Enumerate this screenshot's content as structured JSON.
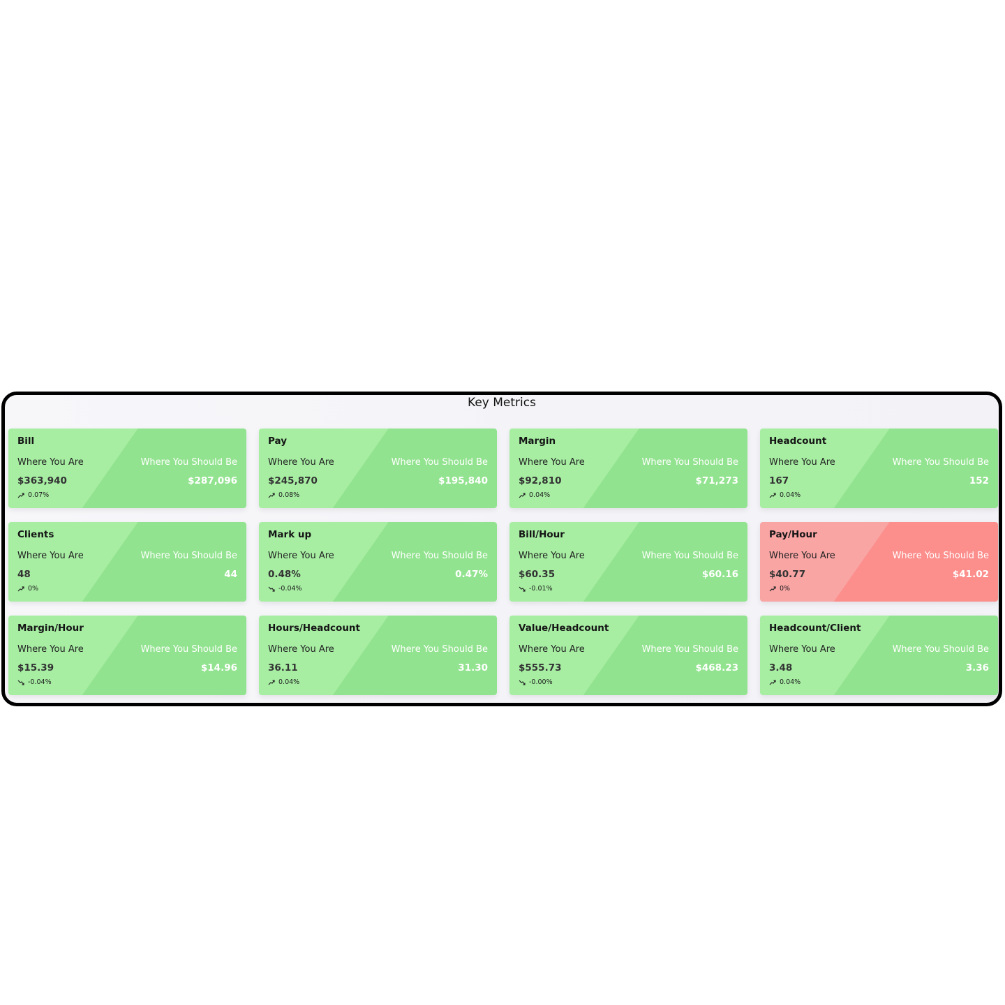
{
  "panel": {
    "title": "Key Metrics"
  },
  "labels": {
    "current": "Where You Are",
    "target": "Where You Should Be"
  },
  "colors": {
    "good_light": "#a7eea3",
    "good_dark": "#92e38f",
    "bad_light": "#f8a5a4",
    "bad_dark": "#fc8e8c"
  },
  "cards": [
    {
      "title": "Bill",
      "current": "$363,940",
      "target": "$287,096",
      "change": "0.07%",
      "trend": "up",
      "status": "good"
    },
    {
      "title": "Pay",
      "current": "$245,870",
      "target": "$195,840",
      "change": "0.08%",
      "trend": "up",
      "status": "good"
    },
    {
      "title": "Margin",
      "current": "$92,810",
      "target": "$71,273",
      "change": "0.04%",
      "trend": "up",
      "status": "good"
    },
    {
      "title": "Headcount",
      "current": "167",
      "target": "152",
      "change": "0.04%",
      "trend": "up",
      "status": "good"
    },
    {
      "title": "Clients",
      "current": "48",
      "target": "44",
      "change": "0%",
      "trend": "up",
      "status": "good"
    },
    {
      "title": "Mark up",
      "current": "0.48%",
      "target": "0.47%",
      "change": "-0.04%",
      "trend": "down",
      "status": "good"
    },
    {
      "title": "Bill/Hour",
      "current": "$60.35",
      "target": "$60.16",
      "change": "-0.01%",
      "trend": "down",
      "status": "good"
    },
    {
      "title": "Pay/Hour",
      "current": "$40.77",
      "target": "$41.02",
      "change": "0%",
      "trend": "up",
      "status": "bad"
    },
    {
      "title": "Margin/Hour",
      "current": "$15.39",
      "target": "$14.96",
      "change": "-0.04%",
      "trend": "down",
      "status": "good"
    },
    {
      "title": "Hours/Headcount",
      "current": "36.11",
      "target": "31.30",
      "change": "0.04%",
      "trend": "up",
      "status": "good"
    },
    {
      "title": "Value/Headcount",
      "current": "$555.73",
      "target": "$468.23",
      "change": "-0.00%",
      "trend": "down",
      "status": "good"
    },
    {
      "title": "Headcount/Client",
      "current": "3.48",
      "target": "3.36",
      "change": "0.04%",
      "trend": "up",
      "status": "good"
    }
  ]
}
